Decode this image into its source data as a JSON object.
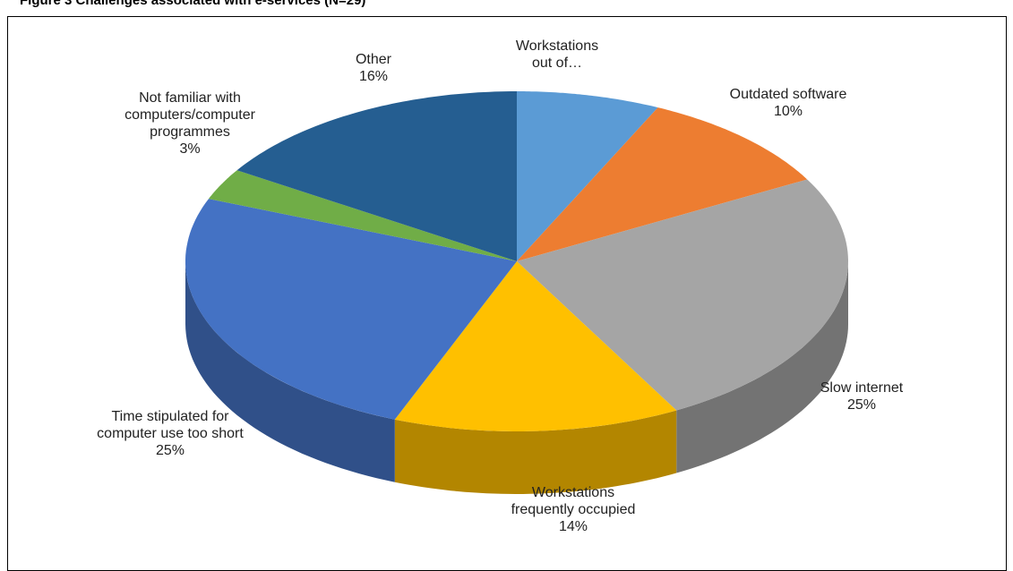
{
  "chart_data": {
    "type": "pie",
    "title": "Figure 3 Challenges associated with e-services (N=29)",
    "categories": [
      "Workstations out of…",
      "Outdated software",
      "Slow internet",
      "Workstations frequently occupied",
      "Time stipulated for computer use too short",
      "Not familiar with computers/computer programmes",
      "Other"
    ],
    "values": [
      7,
      10,
      25,
      14,
      25,
      3,
      16
    ],
    "value_labels": [
      null,
      "10%",
      "25%",
      "14%",
      "25%",
      "3%",
      "16%"
    ],
    "colors": [
      "#5b9bd5",
      "#ed7d31",
      "#a5a5a5",
      "#ffc000",
      "#4472c4",
      "#70ad47",
      "#255e91"
    ]
  }
}
